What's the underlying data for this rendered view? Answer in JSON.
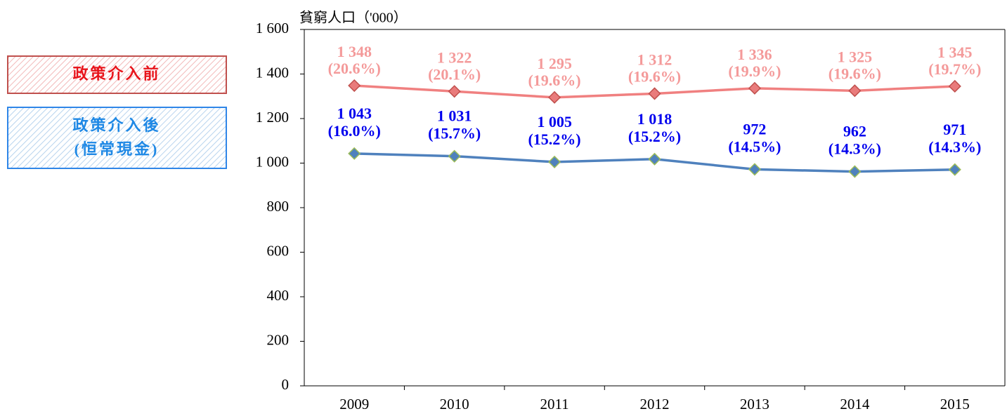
{
  "chart_data": {
    "type": "line",
    "y_axis_label": "貧窮人口（'000）",
    "categories": [
      "2009",
      "2010",
      "2011",
      "2012",
      "2013",
      "2014",
      "2015"
    ],
    "ylim": [
      0,
      1600
    ],
    "yticks": [
      0,
      200,
      400,
      600,
      800,
      {
        "value": 1000,
        "label": "1 000"
      },
      {
        "value": 1200,
        "label": "1 200"
      },
      {
        "value": 1400,
        "label": "1 400"
      },
      {
        "value": 1600,
        "label": "1 600"
      }
    ],
    "series": [
      {
        "name": "政策介入前",
        "color": "#f08080",
        "marker_color": "#e97b7b",
        "marker_edge": "#c0504d",
        "label_color": "#f49a9a",
        "box_color": "#c0504d",
        "text_color": "#e8141b",
        "values": [
          1348,
          1322,
          1295,
          1312,
          1336,
          1325,
          1345
        ],
        "value_labels": [
          "1 348",
          "1 322",
          "1 295",
          "1 312",
          "1 336",
          "1 325",
          "1 345"
        ],
        "share_labels": [
          "(20.6%)",
          "(20.1%)",
          "(19.6%)",
          "(19.6%)",
          "(19.9%)",
          "(19.6%)",
          "(19.7%)"
        ]
      },
      {
        "name": "政策介入後",
        "subname": "(恒常現金)",
        "color": "#4f81bd",
        "marker_color": "#4f81bd",
        "marker_edge": "#9bbb59",
        "label_color": "#0000ee",
        "box_color": "#2f86e8",
        "text_color": "#1e88e5",
        "values": [
          1043,
          1031,
          1005,
          1018,
          972,
          962,
          971
        ],
        "value_labels": [
          "1 043",
          "1 031",
          "1 005",
          "1 018",
          "972",
          "962",
          "971"
        ],
        "share_labels": [
          "(16.0%)",
          "(15.7%)",
          "(15.2%)",
          "(15.2%)",
          "(14.5%)",
          "(14.3%)",
          "(14.3%)"
        ]
      }
    ]
  }
}
